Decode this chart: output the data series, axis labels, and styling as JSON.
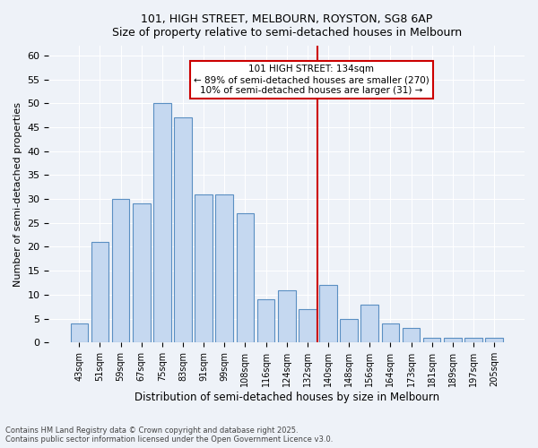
{
  "title1": "101, HIGH STREET, MELBOURN, ROYSTON, SG8 6AP",
  "title2": "Size of property relative to semi-detached houses in Melbourn",
  "xlabel": "Distribution of semi-detached houses by size in Melbourn",
  "ylabel": "Number of semi-detached properties",
  "categories": [
    "43sqm",
    "51sqm",
    "59sqm",
    "67sqm",
    "75sqm",
    "83sqm",
    "91sqm",
    "99sqm",
    "108sqm",
    "116sqm",
    "124sqm",
    "132sqm",
    "140sqm",
    "148sqm",
    "156sqm",
    "164sqm",
    "173sqm",
    "181sqm",
    "189sqm",
    "197sqm",
    "205sqm"
  ],
  "values": [
    4,
    21,
    21,
    30,
    29,
    50,
    47,
    31,
    31,
    27,
    27,
    9,
    9,
    11,
    11,
    7,
    12,
    12,
    5,
    5,
    8,
    8,
    4,
    4,
    3,
    1,
    1,
    1
  ],
  "bar_values": [
    4,
    21,
    30,
    29,
    50,
    47,
    31,
    31,
    27,
    9,
    11,
    7,
    12,
    5,
    8,
    4,
    3,
    1,
    1,
    1,
    1
  ],
  "bar_color": "#c5d8f0",
  "bar_edge_color": "#5a8fc2",
  "vline_x": 12,
  "vline_color": "#cc0000",
  "annotation_title": "101 HIGH STREET: 134sqm",
  "annotation_line1": "← 89% of semi-detached houses are smaller (270)",
  "annotation_line2": "10% of semi-detached houses are larger (31) →",
  "annotation_box_color": "#cc0000",
  "ylim": [
    0,
    62
  ],
  "yticks": [
    0,
    5,
    10,
    15,
    20,
    25,
    30,
    35,
    40,
    45,
    50,
    55,
    60
  ],
  "footnote1": "Contains HM Land Registry data © Crown copyright and database right 2025.",
  "footnote2": "Contains public sector information licensed under the Open Government Licence v3.0.",
  "bg_color": "#eef2f8",
  "plot_bg_color": "#eef2f8"
}
